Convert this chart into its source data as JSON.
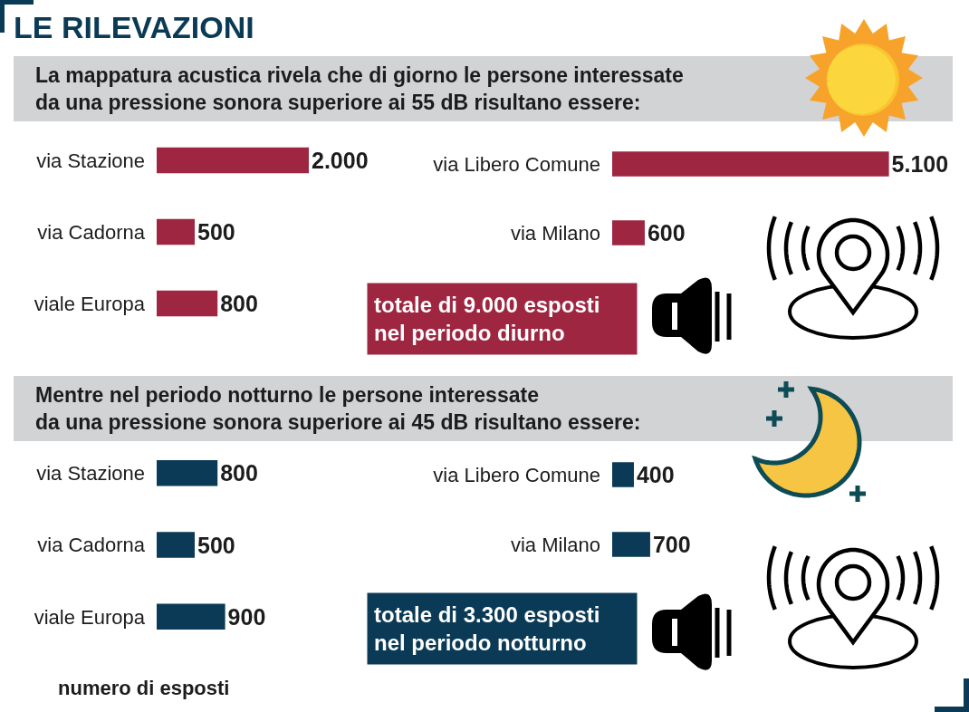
{
  "chart_data": [
    {
      "type": "bar",
      "orientation": "horizontal",
      "title": "LE RILEVAZIONI",
      "subtitle": "La mappatura acustica rivela che di giorno le persone interessate\nda una pressione sonora superiore ai 55 dB risultano essere:",
      "categories": [
        "via Stazione",
        "via Cadorna",
        "viale Europa"
      ],
      "values": [
        2000,
        500,
        800
      ],
      "value_labels": [
        "2.000",
        "500",
        "800"
      ],
      "color": "#9e2640"
    },
    {
      "type": "bar",
      "orientation": "horizontal",
      "categories": [
        "via Libero Comune",
        "via Milano"
      ],
      "values": [
        5100,
        600
      ],
      "value_labels": [
        "5.100",
        "600"
      ],
      "color": "#9e2640",
      "annotations": [
        "totale di 9.000 esposti\nnel periodo diurno"
      ]
    },
    {
      "type": "bar",
      "orientation": "horizontal",
      "subtitle": "Mentre nel periodo notturno le persone interessate\nda una pressione sonora superiore ai 45 dB risultano essere:",
      "categories": [
        "via Stazione",
        "via Cadorna",
        "viale Europa"
      ],
      "values": [
        800,
        500,
        900
      ],
      "value_labels": [
        "800",
        "500",
        "900"
      ],
      "color": "#0a3a55",
      "xlabel": "numero di esposti"
    },
    {
      "type": "bar",
      "orientation": "horizontal",
      "categories": [
        "via Libero Comune",
        "via Milano"
      ],
      "values": [
        400,
        700
      ],
      "value_labels": [
        "400",
        "700"
      ],
      "color": "#0a3a55",
      "annotations": [
        "totale di 3.300 esposti\nnel periodo notturno"
      ]
    }
  ]
}
